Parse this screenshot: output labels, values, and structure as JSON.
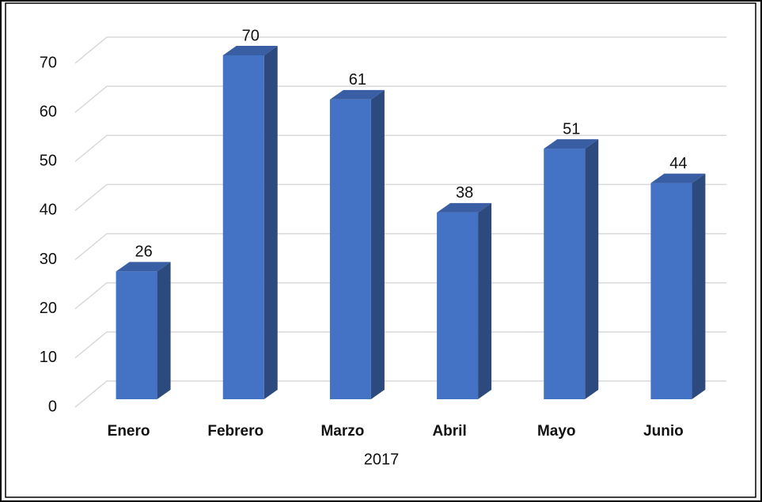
{
  "chart_data": {
    "type": "bar3d",
    "xlabel": "2017",
    "categories": [
      "Enero",
      "Febrero",
      "Marzo",
      "Abril",
      "Mayo",
      "Junio"
    ],
    "values": [
      26,
      70,
      61,
      38,
      51,
      44
    ],
    "color": "#4472c4",
    "ylim": [
      0,
      70
    ],
    "yticks": [
      0,
      10,
      20,
      30,
      40,
      50,
      60,
      70
    ],
    "grid": true
  }
}
